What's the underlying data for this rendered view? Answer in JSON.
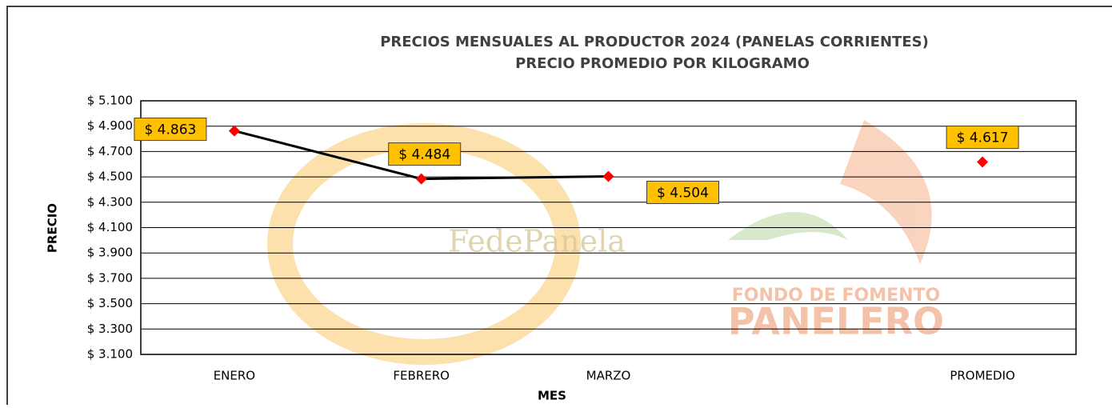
{
  "chart_data": {
    "type": "line",
    "title": "PRECIOS MENSUALES AL PRODUCTOR 2024 (PANELAS CORRIENTES)",
    "subtitle": "PRECIO PROMEDIO POR KILOGRAMO",
    "x_label": "MES",
    "y_label": "PRECIO",
    "categories": [
      "ENERO",
      "FEBRERO",
      "MARZO",
      null,
      "PROMEDIO"
    ],
    "values": [
      4863,
      4484,
      4504,
      null,
      4617
    ],
    "value_labels": [
      "$ 4.863",
      "$ 4.484",
      "$ 4.504",
      null,
      "$ 4.617"
    ],
    "line_color": "#000000",
    "marker_color": "#ff0000",
    "label_color": "#ffc000",
    "ylim": [
      3100,
      5100
    ],
    "yticks": [
      {
        "value": 3100,
        "label": "$ 3.100"
      },
      {
        "value": 3300,
        "label": "$ 3.300"
      },
      {
        "value": 3500,
        "label": "$ 3.500"
      },
      {
        "value": 3700,
        "label": "$ 3.700"
      },
      {
        "value": 3900,
        "label": "$ 3.900"
      },
      {
        "value": 4100,
        "label": "$ 4.100"
      },
      {
        "value": 4300,
        "label": "$ 4.300"
      },
      {
        "value": 4500,
        "label": "$ 4.500"
      },
      {
        "value": 4700,
        "label": "$ 4.700"
      },
      {
        "value": 4900,
        "label": "$ 4.900"
      },
      {
        "value": 5100,
        "label": "$ 5.100"
      }
    ],
    "grid": true,
    "watermarks": [
      "FedePanela",
      "FONDO DE FOMENTO",
      "PANELERO"
    ]
  }
}
